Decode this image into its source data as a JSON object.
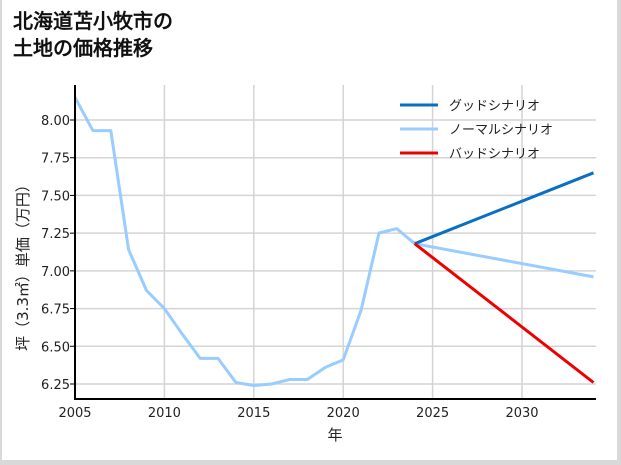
{
  "title": "北海道苫小牧市の\n土地の価格推移",
  "chart_data": {
    "type": "line",
    "title": "北海道苫小牧市の土地の価格推移",
    "xlabel": "年",
    "ylabel": "坪（3.3㎡）単価（万円）",
    "xlim": [
      2005,
      2034
    ],
    "ylim": [
      6.15,
      8.22
    ],
    "xticks": [
      2005,
      2010,
      2015,
      2020,
      2025,
      2030
    ],
    "yticks": [
      6.25,
      6.5,
      6.75,
      7.0,
      7.25,
      7.5,
      7.75,
      8.0
    ],
    "ytick_labels": [
      "6.25",
      "6.50",
      "6.75",
      "7.00",
      "7.25",
      "7.50",
      "7.75",
      "8.00"
    ],
    "grid": true,
    "legend_position": "upper right",
    "series": [
      {
        "name": "グッドシナリオ",
        "color": "#0a6fc2",
        "x": [
          2024,
          2034
        ],
        "values": [
          7.18,
          7.65
        ]
      },
      {
        "name": "ノーマルシナリオ",
        "color": "#99ccff",
        "x": [
          2005,
          2006,
          2007,
          2008,
          2009,
          2010,
          2011,
          2012,
          2013,
          2014,
          2015,
          2016,
          2017,
          2018,
          2019,
          2020,
          2021,
          2022,
          2023,
          2024,
          2034
        ],
        "values": [
          8.15,
          7.93,
          7.93,
          7.14,
          6.87,
          6.75,
          6.58,
          6.42,
          6.42,
          6.26,
          6.24,
          6.25,
          6.28,
          6.28,
          6.36,
          6.41,
          6.74,
          7.25,
          7.28,
          7.18,
          6.96
        ]
      },
      {
        "name": "バッドシナリオ",
        "color": "#ee0000",
        "x": [
          2024,
          2034
        ],
        "values": [
          7.18,
          6.26
        ]
      }
    ]
  }
}
